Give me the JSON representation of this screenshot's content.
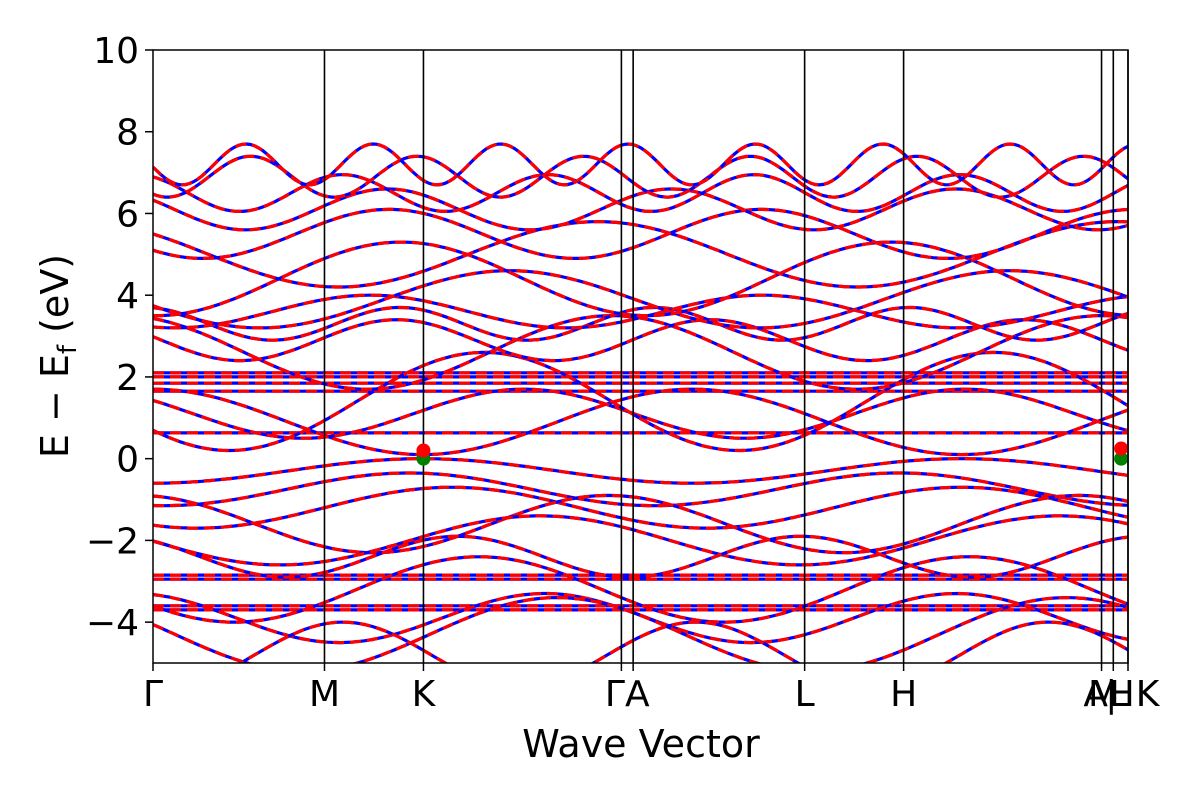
{
  "chart_data": {
    "type": "line",
    "xlabel": "Wave Vector",
    "ylabel": "E − E",
    "ylabel_sub": "f",
    "ylabel_unit": " (eV)",
    "ylim": [
      -5,
      10
    ],
    "yticks": [
      {
        "value": 10,
        "label": "10"
      },
      {
        "value": 8,
        "label": "8"
      },
      {
        "value": 6,
        "label": "6"
      },
      {
        "value": 4,
        "label": "4"
      },
      {
        "value": 2,
        "label": "2"
      },
      {
        "value": 0,
        "label": "0"
      },
      {
        "value": -2,
        "label": "−2"
      },
      {
        "value": -4,
        "label": "−4"
      }
    ],
    "xlim": [
      0,
      9.95
    ],
    "high_symmetry_points": [
      {
        "label": "Γ",
        "k": 0.0
      },
      {
        "label": "M",
        "k": 1.75
      },
      {
        "label": "K",
        "k": 2.76
      },
      {
        "label": "Γ",
        "k": 4.78
      },
      {
        "label": "A",
        "k": 4.9
      },
      {
        "label": "L",
        "k": 6.65
      },
      {
        "label": "H",
        "k": 7.66
      },
      {
        "label": "A",
        "k": 9.68
      },
      {
        "label": "L",
        "k": 9.8
      },
      {
        "label": "M",
        "k": 9.72
      },
      {
        "label": "K",
        "k": 9.95
      },
      {
        "label": "H",
        "k": 9.83
      }
    ],
    "tick_labels_display": [
      {
        "text": "Γ",
        "k": 0.0
      },
      {
        "text": "M",
        "k": 1.75
      },
      {
        "text": "K",
        "k": 2.76
      },
      {
        "text": "ΓA",
        "k": 4.84
      },
      {
        "text": "L",
        "k": 6.65
      },
      {
        "text": "H",
        "k": 7.66
      },
      {
        "text": "A",
        "k": 9.62
      },
      {
        "text": "M",
        "k": 9.7
      },
      {
        "text": "|",
        "k": 9.78
      },
      {
        "text": "L",
        "k": 9.86
      },
      {
        "text": "H",
        "k": 9.88
      },
      {
        "text": "K",
        "k": 10.15
      }
    ],
    "vertical_lines_k": [
      1.75,
      2.76,
      4.78,
      4.9,
      6.65,
      7.66,
      9.68,
      9.8,
      9.95
    ],
    "series": [
      {
        "color": "#0000ff",
        "style": "solid"
      },
      {
        "color": "#ff0000",
        "style": "dashed"
      }
    ],
    "flat_band_energy": 0.63,
    "bands": [
      {
        "type": "flat",
        "e": 0.63
      },
      {
        "type": "flat",
        "e": 1.65
      },
      {
        "type": "flat",
        "e": 1.85
      },
      {
        "type": "flat",
        "e": 2.0
      },
      {
        "type": "flat",
        "e": 2.1
      },
      {
        "type": "flat",
        "e": -2.95
      },
      {
        "type": "flat",
        "e": -2.85
      },
      {
        "type": "flat",
        "e": -3.6
      },
      {
        "type": "flat",
        "e": -3.7
      },
      {
        "type": "cos",
        "base": 0.9,
        "amp": 0.8,
        "period": 5.5,
        "phase": 0.0
      },
      {
        "type": "cos",
        "base": 1.1,
        "amp": 0.6,
        "period": 4.5,
        "phase": 1.0
      },
      {
        "type": "cos",
        "base": 1.4,
        "amp": 1.2,
        "period": 5.2,
        "phase": 2.2
      },
      {
        "type": "cos",
        "base": 2.6,
        "amp": 0.9,
        "period": 5.0,
        "phase": 0.4
      },
      {
        "type": "cos",
        "base": 2.9,
        "amp": 0.5,
        "period": 3.2,
        "phase": 1.4
      },
      {
        "type": "cos",
        "base": 3.3,
        "amp": 0.4,
        "period": 2.6,
        "phase": 0.2
      },
      {
        "type": "cos",
        "base": 3.6,
        "amp": 0.4,
        "period": 4.0,
        "phase": 2.8
      },
      {
        "type": "cos",
        "base": 3.9,
        "amp": 0.7,
        "period": 5.1,
        "phase": 1.8
      },
      {
        "type": "cos",
        "base": 4.4,
        "amp": 0.9,
        "period": 5.0,
        "phase": 3.1
      },
      {
        "type": "cos",
        "base": 5.0,
        "amp": 0.8,
        "period": 5.3,
        "phase": 0.9
      },
      {
        "type": "cos",
        "base": 5.5,
        "amp": 0.6,
        "period": 3.8,
        "phase": 2.3
      },
      {
        "type": "cos",
        "base": 6.1,
        "amp": 0.5,
        "period": 2.9,
        "phase": 1.1
      },
      {
        "type": "cos",
        "base": 6.5,
        "amp": 0.45,
        "period": 2.1,
        "phase": 0.5
      },
      {
        "type": "cos",
        "base": 6.9,
        "amp": 0.5,
        "period": 1.7,
        "phase": 2.6
      },
      {
        "type": "cos",
        "base": 7.2,
        "amp": 0.5,
        "period": 1.3,
        "phase": 1.7
      },
      {
        "type": "cos",
        "base": -0.3,
        "amp": 0.3,
        "period": 5.5,
        "phase": 3.14
      },
      {
        "type": "cos",
        "base": -0.75,
        "amp": 0.4,
        "period": 5.0,
        "phase": 3.0
      },
      {
        "type": "cos",
        "base": -1.2,
        "amp": 0.5,
        "period": 5.2,
        "phase": 2.6
      },
      {
        "type": "cos",
        "base": -1.6,
        "amp": 0.7,
        "period": 4.8,
        "phase": 0.2
      },
      {
        "type": "cos",
        "base": -2.0,
        "amp": 0.6,
        "period": 5.3,
        "phase": 1.6
      },
      {
        "type": "cos",
        "base": -2.4,
        "amp": 0.5,
        "period": 3.5,
        "phase": 0.7
      },
      {
        "type": "cos",
        "base": -3.2,
        "amp": 0.8,
        "period": 5.0,
        "phase": 2.1
      },
      {
        "type": "cos",
        "base": -3.9,
        "amp": 0.6,
        "period": 4.2,
        "phase": 0.3
      },
      {
        "type": "cos",
        "base": -4.3,
        "amp": 0.9,
        "period": 5.2,
        "phase": 1.3
      },
      {
        "type": "cos",
        "base": -4.8,
        "amp": 0.8,
        "period": 3.6,
        "phase": 2.9
      }
    ],
    "dirac_points": [
      {
        "k": 2.76,
        "e": 0.0,
        "color": "#008000"
      },
      {
        "k": 2.76,
        "e": 0.2,
        "color": "#ff0000"
      },
      {
        "k": 9.88,
        "e": 0.0,
        "color": "#008000"
      },
      {
        "k": 9.88,
        "e": 0.25,
        "color": "#ff0000"
      }
    ]
  }
}
